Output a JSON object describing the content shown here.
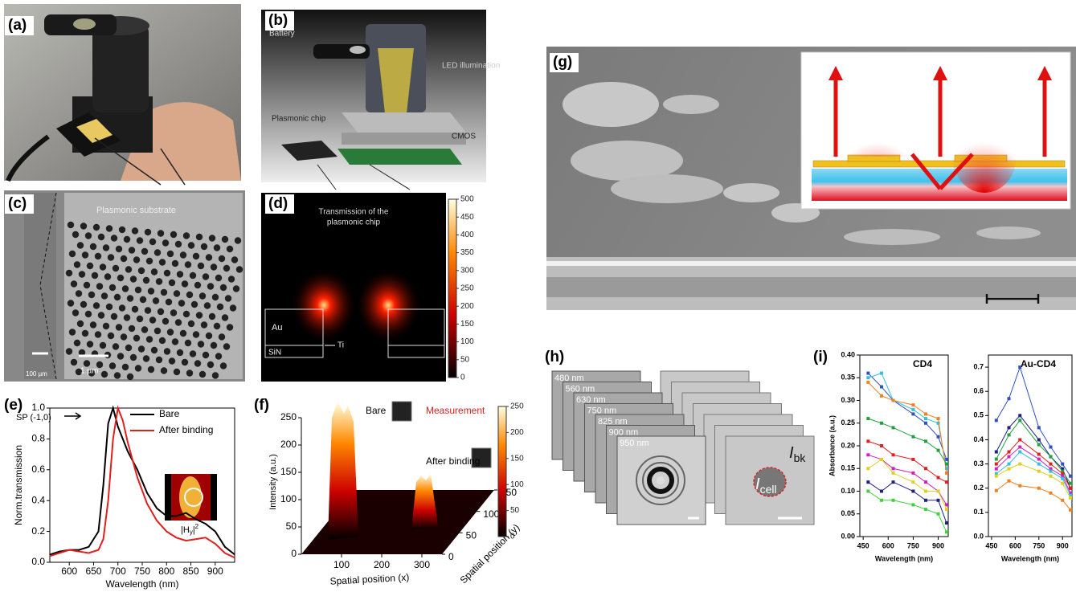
{
  "panels": [
    "(a)",
    "(b)",
    "(c)",
    "(d)",
    "(e)",
    "(f)",
    "(g)",
    "(h)",
    "(i)"
  ],
  "b": {
    "labels": [
      "Battery",
      "LED illumination",
      "Plasmonic chip",
      "CMOS"
    ]
  },
  "c": {
    "title": "Plasmonic substrate",
    "scale_left": "100 µm",
    "scale_right": "1 µm"
  },
  "d": {
    "title": [
      "Transmission of the",
      "plasmonic chip"
    ],
    "labels": [
      "Au",
      "SiN",
      "Ti"
    ],
    "colorbar": {
      "range": [
        0,
        500
      ],
      "ticks": [
        0,
        50,
        100,
        150,
        200,
        250,
        300,
        350,
        400,
        450,
        500
      ]
    }
  },
  "f": {
    "bare": "Bare",
    "measurement": "Measurement",
    "after": "After binding",
    "zlabel": "Intensity (a.u.)",
    "zlim": [
      0,
      250
    ],
    "zticks": [
      0,
      50,
      100,
      150,
      200,
      250
    ],
    "xlabel": "Spatial position (x)",
    "xlim": [
      0,
      350
    ],
    "xticks": [
      100,
      200,
      300
    ],
    "ylabel": "Spatial position (y)",
    "ylim": [
      0,
      150
    ],
    "yticks": [
      0,
      50,
      100,
      150
    ],
    "colorbar": {
      "range": [
        0,
        250
      ],
      "ticks": [
        0,
        50,
        100,
        150,
        200,
        250
      ]
    }
  },
  "h": {
    "wavelengths": [
      "480 nm",
      "560 nm",
      "630 nm",
      "750 nm",
      "825 nm",
      "900 nm",
      "950 nm"
    ],
    "bk": [
      "I",
      "bk"
    ],
    "cell": [
      "I",
      "cell"
    ]
  },
  "chart_data": [
    {
      "type": "line",
      "ylabel": "Norm.transmission",
      "xlabel": "Wavelength (nm)",
      "legend": "upper right",
      "annotations": {
        "sp": "SP (-1,0)",
        "field": [
          "|H",
          "y",
          "|",
          "2"
        ]
      },
      "x": [
        560,
        580,
        600,
        620,
        640,
        660,
        670,
        680,
        690,
        700,
        710,
        720,
        740,
        760,
        780,
        800,
        820,
        840,
        860,
        880,
        900,
        920,
        940
      ],
      "xlim": [
        560,
        940
      ],
      "xticks": [
        600,
        650,
        700,
        750,
        800,
        850,
        900
      ],
      "ylim": [
        0,
        1.0
      ],
      "yticks": [
        {
          "value": 0,
          "label": "0.0"
        },
        {
          "value": 0.2,
          "label": "0.2"
        },
        {
          "value": 0.4,
          "label": "0.4"
        },
        {
          "value": 0.6,
          "label": "0.6"
        },
        {
          "value": 0.8,
          "label": "0.8"
        },
        {
          "value": 1.0,
          "label": "1.0"
        }
      ],
      "series": [
        {
          "name": "Bare",
          "color": "#000000",
          "values": [
            0.05,
            0.07,
            0.08,
            0.08,
            0.1,
            0.2,
            0.5,
            0.9,
            1.0,
            0.88,
            0.8,
            0.72,
            0.6,
            0.45,
            0.35,
            0.3,
            0.3,
            0.32,
            0.28,
            0.25,
            0.2,
            0.1,
            0.05
          ]
        },
        {
          "name": "After binding",
          "color": "#e0201c",
          "values": [
            0.04,
            0.06,
            0.08,
            0.07,
            0.06,
            0.08,
            0.15,
            0.4,
            0.8,
            1.0,
            0.92,
            0.78,
            0.55,
            0.38,
            0.27,
            0.2,
            0.16,
            0.14,
            0.15,
            0.16,
            0.12,
            0.06,
            0.03
          ]
        }
      ]
    },
    {
      "type": "line",
      "title": "CD4",
      "ylabel": "Absorbance (a.u.)",
      "xlabel": "Wavelength (nm)",
      "markers": true,
      "x": [
        480,
        560,
        630,
        750,
        825,
        900,
        950
      ],
      "xlim": [
        430,
        960
      ],
      "xticks": [
        450,
        600,
        750,
        900
      ],
      "ylim": [
        0,
        0.4
      ],
      "yticks": [
        {
          "value": 0,
          "label": "0.00"
        },
        {
          "value": 0.05,
          "label": "0.05"
        },
        {
          "value": 0.1,
          "label": "0.10"
        },
        {
          "value": 0.15,
          "label": "0.15"
        },
        {
          "value": 0.2,
          "label": "0.20"
        },
        {
          "value": 0.25,
          "label": "0.25"
        },
        {
          "value": 0.3,
          "label": "0.30"
        },
        {
          "value": 0.35,
          "label": "0.35"
        },
        {
          "value": 0.4,
          "label": "0.40"
        }
      ],
      "series": [
        {
          "color": "#3050c0",
          "values": [
            0.36,
            0.33,
            0.3,
            0.27,
            0.25,
            0.22,
            0.17
          ]
        },
        {
          "color": "#30c0e0",
          "values": [
            0.35,
            0.36,
            0.3,
            0.28,
            0.26,
            0.25,
            0.15
          ]
        },
        {
          "color": "#f08020",
          "values": [
            0.34,
            0.31,
            0.3,
            0.29,
            0.27,
            0.26,
            0.14
          ]
        },
        {
          "color": "#20a040",
          "values": [
            0.26,
            0.25,
            0.24,
            0.22,
            0.21,
            0.19,
            0.16
          ]
        },
        {
          "color": "#e02020",
          "values": [
            0.21,
            0.2,
            0.18,
            0.17,
            0.15,
            0.13,
            0.12
          ]
        },
        {
          "color": "#d020c0",
          "values": [
            0.18,
            0.17,
            0.15,
            0.14,
            0.12,
            0.1,
            0.07
          ]
        },
        {
          "color": "#e0d020",
          "values": [
            0.15,
            0.17,
            0.14,
            0.12,
            0.1,
            0.1,
            0.06
          ]
        },
        {
          "color": "#202080",
          "values": [
            0.12,
            0.1,
            0.12,
            0.1,
            0.08,
            0.08,
            0.03
          ]
        },
        {
          "color": "#40d040",
          "values": [
            0.1,
            0.08,
            0.08,
            0.07,
            0.06,
            0.05,
            0.01
          ]
        }
      ]
    },
    {
      "type": "line",
      "title": "Au-CD4",
      "xlabel": "Wavelength (nm)",
      "markers": true,
      "x": [
        480,
        560,
        630,
        750,
        825,
        900,
        950
      ],
      "xlim": [
        430,
        960
      ],
      "xticks": [
        450,
        600,
        750,
        900
      ],
      "ylim": [
        0,
        0.75
      ],
      "yticks": [
        {
          "value": 0,
          "label": "0.0"
        },
        {
          "value": 0.1,
          "label": "0.1"
        },
        {
          "value": 0.2,
          "label": "0.2"
        },
        {
          "value": 0.3,
          "label": "0.3"
        },
        {
          "value": 0.4,
          "label": "0.4"
        },
        {
          "value": 0.5,
          "label": "0.5"
        },
        {
          "value": 0.6,
          "label": "0.6"
        },
        {
          "value": 0.7,
          "label": "0.7"
        }
      ],
      "series": [
        {
          "color": "#3050c0",
          "values": [
            0.48,
            0.57,
            0.7,
            0.45,
            0.37,
            0.3,
            0.25
          ]
        },
        {
          "color": "#202080",
          "values": [
            0.35,
            0.45,
            0.5,
            0.4,
            0.33,
            0.28,
            0.2
          ]
        },
        {
          "color": "#20a040",
          "values": [
            0.32,
            0.42,
            0.48,
            0.38,
            0.33,
            0.27,
            0.22
          ]
        },
        {
          "color": "#e02020",
          "values": [
            0.3,
            0.35,
            0.4,
            0.34,
            0.3,
            0.26,
            0.2
          ]
        },
        {
          "color": "#d020c0",
          "values": [
            0.28,
            0.33,
            0.37,
            0.32,
            0.28,
            0.25,
            0.18
          ]
        },
        {
          "color": "#30c0e0",
          "values": [
            0.26,
            0.3,
            0.35,
            0.3,
            0.27,
            0.24,
            0.17
          ]
        },
        {
          "color": "#e0d020",
          "values": [
            0.25,
            0.28,
            0.3,
            0.27,
            0.25,
            0.22,
            0.16
          ]
        },
        {
          "color": "#f08020",
          "values": [
            0.19,
            0.23,
            0.21,
            0.2,
            0.18,
            0.15,
            0.11
          ]
        }
      ]
    }
  ]
}
